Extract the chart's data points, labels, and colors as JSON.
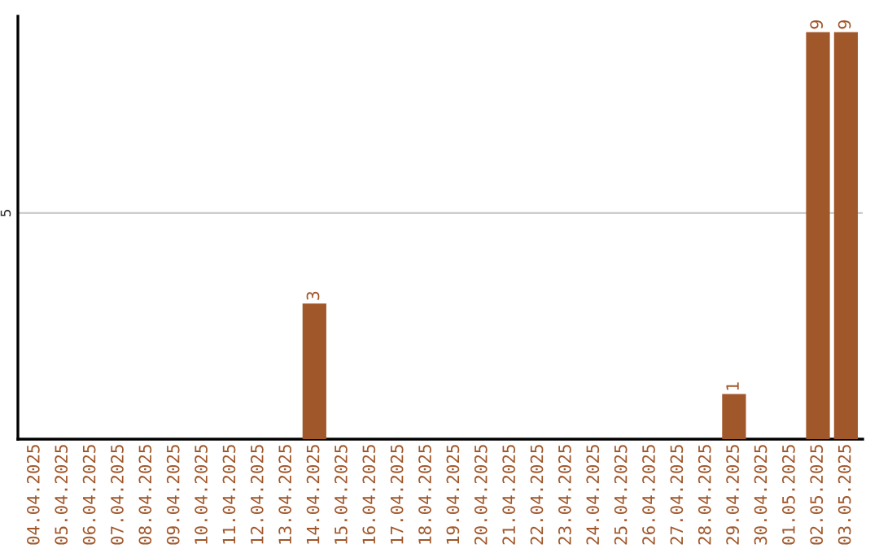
{
  "chart_data": {
    "type": "bar",
    "categories": [
      "04.04.2025",
      "05.04.2025",
      "06.04.2025",
      "07.04.2025",
      "08.04.2025",
      "09.04.2025",
      "10.04.2025",
      "11.04.2025",
      "12.04.2025",
      "13.04.2025",
      "14.04.2025",
      "15.04.2025",
      "16.04.2025",
      "17.04.2025",
      "18.04.2025",
      "19.04.2025",
      "20.04.2025",
      "21.04.2025",
      "22.04.2025",
      "23.04.2025",
      "24.04.2025",
      "25.04.2025",
      "26.04.2025",
      "27.04.2025",
      "28.04.2025",
      "29.04.2025",
      "30.04.2025",
      "01.05.2025",
      "02.05.2025",
      "03.05.2025"
    ],
    "values": [
      0,
      0,
      0,
      0,
      0,
      0,
      0,
      0,
      0,
      0,
      3,
      0,
      0,
      0,
      0,
      0,
      0,
      0,
      0,
      0,
      0,
      0,
      0,
      0,
      0,
      1,
      0,
      0,
      9,
      9
    ],
    "value_labels": [
      null,
      null,
      null,
      null,
      null,
      null,
      null,
      null,
      null,
      null,
      "3",
      null,
      null,
      null,
      null,
      null,
      null,
      null,
      null,
      null,
      null,
      null,
      null,
      null,
      null,
      "1",
      null,
      null,
      "9",
      "9"
    ],
    "color": "#a0572a",
    "ylim": [
      0,
      9.35
    ],
    "yticks": [
      5
    ],
    "grid": "y"
  }
}
